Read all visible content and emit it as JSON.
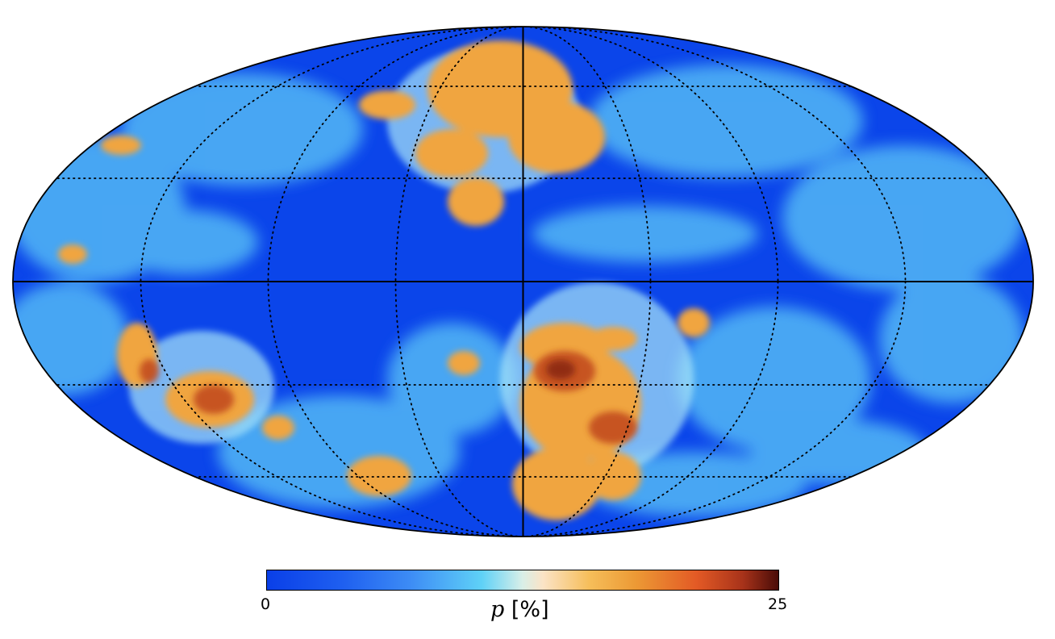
{
  "map": {
    "projection": "mollweide",
    "graticule": "dotted",
    "central_axes": "solid",
    "colors": {
      "low": "#0a3fe8",
      "mid": "#5fd1f7",
      "neutral": "#fbe3c6",
      "orange": "#ec9a35",
      "high": "#4a0c08"
    }
  },
  "colorbar": {
    "min_label": "0",
    "max_label": "25",
    "variable": "p",
    "unit": "[%]",
    "range": [
      0,
      25
    ]
  }
}
